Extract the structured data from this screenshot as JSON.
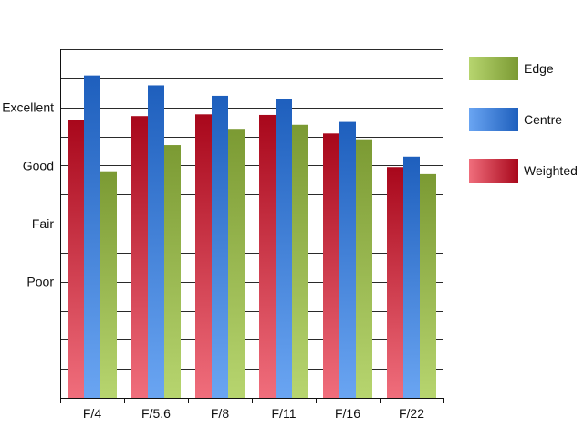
{
  "chart_data": {
    "type": "bar",
    "categories": [
      "F/4",
      "F/5.6",
      "F/8",
      "F/11",
      "F/16",
      "F/22"
    ],
    "series": [
      {
        "name": "Weighted",
        "color_top": "#a8071b",
        "color_bottom": "#f06e7c",
        "values": [
          3.78,
          3.85,
          3.88,
          3.87,
          3.55,
          2.97
        ]
      },
      {
        "name": "Centre",
        "color_top": "#1e5fbd",
        "color_bottom": "#6aa5f2",
        "values": [
          4.55,
          4.38,
          4.2,
          4.15,
          3.75,
          3.15
        ]
      },
      {
        "name": "Edge",
        "color_top": "#7b9a33",
        "color_bottom": "#b7d56f",
        "values": [
          2.9,
          3.35,
          3.63,
          3.7,
          3.45,
          2.85
        ]
      }
    ],
    "legend_order": [
      "Edge",
      "Centre",
      "Weighted"
    ],
    "ytick_labels": [
      {
        "value": 1,
        "label": "Poor"
      },
      {
        "value": 2,
        "label": "Fair"
      },
      {
        "value": 3,
        "label": "Good"
      },
      {
        "value": 4,
        "label": "Excellent"
      }
    ],
    "yaxis_min": -1,
    "yaxis_max": 5,
    "grid_step": 0.5,
    "ygrid": true,
    "legend_position": "right",
    "title": "",
    "xlabel": "",
    "ylabel": ""
  }
}
